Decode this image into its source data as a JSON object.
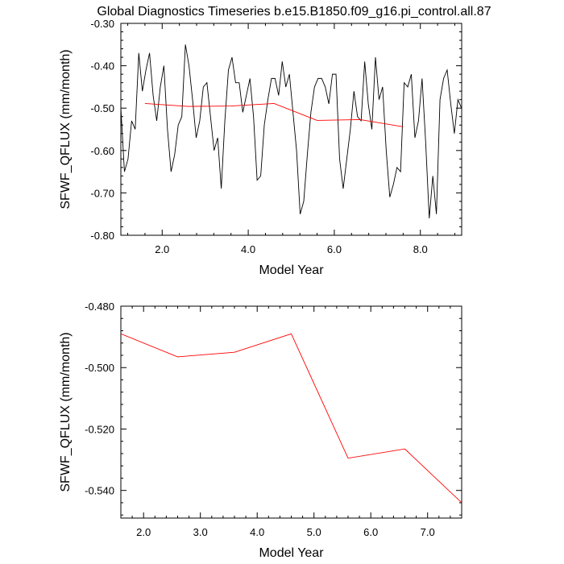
{
  "title": "Global Diagnostics Timeseries b.e15.B1850.f09_g16.pi_control.all.87",
  "colors": {
    "monthly": "#000000",
    "annual": "#ff0000",
    "axis": "#000000"
  },
  "chart_data": [
    {
      "type": "line",
      "panel": "top",
      "xlabel": "Model Year",
      "ylabel": "SFWF_QFLUX (mm/month)",
      "xlim": [
        1.04,
        8.96
      ],
      "ylim": [
        -0.8,
        -0.3
      ],
      "xticks": [
        2.0,
        4.0,
        6.0,
        8.0
      ],
      "xtick_labels": [
        "2.0",
        "4.0",
        "6.0",
        "8.0"
      ],
      "yticks": [
        -0.3,
        -0.4,
        -0.5,
        -0.6,
        -0.7,
        -0.8
      ],
      "ytick_labels": [
        "-0.30",
        "-0.40",
        "-0.50",
        "-0.60",
        "-0.70",
        "-0.80"
      ],
      "series": [
        {
          "name": "monthly",
          "color": "#000000",
          "x_start": 1.04,
          "x_step": 0.08333,
          "values": [
            -0.5,
            -0.65,
            -0.62,
            -0.53,
            -0.55,
            -0.37,
            -0.46,
            -0.41,
            -0.37,
            -0.47,
            -0.53,
            -0.45,
            -0.4,
            -0.55,
            -0.65,
            -0.61,
            -0.54,
            -0.52,
            -0.35,
            -0.4,
            -0.48,
            -0.57,
            -0.53,
            -0.45,
            -0.44,
            -0.52,
            -0.6,
            -0.57,
            -0.69,
            -0.53,
            -0.41,
            -0.38,
            -0.44,
            -0.44,
            -0.51,
            -0.47,
            -0.43,
            -0.52,
            -0.67,
            -0.66,
            -0.54,
            -0.48,
            -0.43,
            -0.43,
            -0.47,
            -0.39,
            -0.45,
            -0.42,
            -0.51,
            -0.6,
            -0.75,
            -0.72,
            -0.61,
            -0.51,
            -0.45,
            -0.43,
            -0.43,
            -0.45,
            -0.49,
            -0.42,
            -0.42,
            -0.62,
            -0.69,
            -0.62,
            -0.55,
            -0.46,
            -0.52,
            -0.53,
            -0.39,
            -0.49,
            -0.55,
            -0.38,
            -0.48,
            -0.45,
            -0.6,
            -0.71,
            -0.68,
            -0.64,
            -0.65,
            -0.44,
            -0.45,
            -0.42,
            -0.57,
            -0.53,
            -0.43,
            -0.58,
            -0.76,
            -0.66,
            -0.75,
            -0.48,
            -0.43,
            -0.41,
            -0.49,
            -0.56,
            -0.48,
            -0.5
          ]
        },
        {
          "name": "annual",
          "color": "#ff0000",
          "x": [
            1.6,
            2.6,
            3.6,
            4.6,
            5.6,
            6.6,
            7.6
          ],
          "values": [
            -0.489,
            -0.496,
            -0.495,
            -0.489,
            -0.529,
            -0.527,
            -0.544
          ]
        }
      ]
    },
    {
      "type": "line",
      "panel": "bottom",
      "xlabel": "Model Year",
      "ylabel": "SFWF_QFLUX (mm/month)",
      "xlim": [
        1.6,
        7.6
      ],
      "ylim": [
        -0.549,
        -0.48
      ],
      "xticks": [
        2.0,
        3.0,
        4.0,
        5.0,
        6.0,
        7.0
      ],
      "xtick_labels": [
        "2.0",
        "3.0",
        "4.0",
        "5.0",
        "6.0",
        "7.0"
      ],
      "yticks": [
        -0.48,
        -0.5,
        -0.52,
        -0.54
      ],
      "ytick_labels": [
        "-0.480",
        "-0.500",
        "-0.520",
        "-0.540"
      ],
      "series": [
        {
          "name": "annual",
          "color": "#ff0000",
          "x": [
            1.6,
            2.6,
            3.6,
            4.6,
            5.6,
            6.6,
            7.6
          ],
          "values": [
            -0.489,
            -0.4965,
            -0.495,
            -0.489,
            -0.5295,
            -0.5265,
            -0.544
          ]
        }
      ]
    }
  ]
}
